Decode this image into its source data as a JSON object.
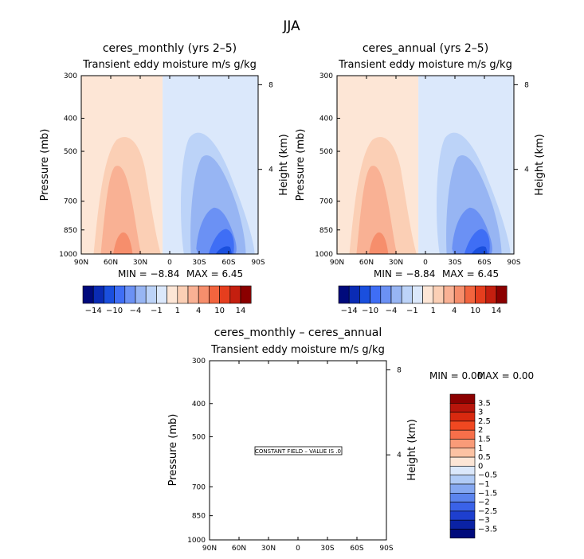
{
  "page": {
    "season": "JJA"
  },
  "panels": [
    {
      "title": "ceres_monthly (yrs 2–5)",
      "subtitle": "Transient eddy moisture m/s g/kg",
      "ylabel": "Pressure (mb)",
      "y2label": "Height (km)",
      "min_text": "MIN =   −8.84",
      "max_text": "MAX =    6.45"
    },
    {
      "title": "ceres_annual (yrs 2–5)",
      "subtitle": "Transient eddy moisture m/s g/kg",
      "ylabel": "Pressure (mb)",
      "y2label": "Height (km)",
      "min_text": "MIN =   −8.84",
      "max_text": "MAX =    6.45"
    },
    {
      "title": "ceres_monthly – ceres_annual",
      "subtitle": "Transient eddy moisture m/s g/kg",
      "ylabel": "Pressure (mb)",
      "y2label": "Height (km)",
      "min_text": "MIN =    0.00",
      "max_text": "MAX =    0.00",
      "note": "CONSTANT FIELD – VALUE IS .0"
    }
  ],
  "chart_data": [
    {
      "type": "heatmap",
      "title": "ceres_monthly (yrs 2–5)",
      "subtitle": "Transient eddy moisture m/s g/kg",
      "xlabel": "",
      "ylabel": "Pressure (mb)",
      "y2label": "Height (km)",
      "x_ticks": [
        "90N",
        "60N",
        "30N",
        "0",
        "30S",
        "60S",
        "90S"
      ],
      "y_ticks": [
        300,
        400,
        500,
        700,
        850,
        1000
      ],
      "y_scale": "log-pressure",
      "y2_ticks": [
        8,
        4
      ],
      "min": -8.84,
      "max": 6.45,
      "colorbar": {
        "orientation": "horizontal",
        "levels": [
          -14,
          -10,
          -4,
          -1,
          1,
          4,
          10,
          14
        ],
        "colors": [
          "#000a7c",
          "#0a2bb4",
          "#1a4fde",
          "#3f6ef5",
          "#6b91f4",
          "#97b5f3",
          "#bcd3f8",
          "#dbe8fb",
          "#fde6d6",
          "#fbcfb5",
          "#f9b194",
          "#f68e6c",
          "#f2643e",
          "#e53e1e",
          "#c41f0f",
          "#8b0000"
        ]
      }
    },
    {
      "type": "heatmap",
      "title": "ceres_annual (yrs 2–5)",
      "subtitle": "Transient eddy moisture m/s g/kg",
      "xlabel": "",
      "ylabel": "Pressure (mb)",
      "y2label": "Height (km)",
      "x_ticks": [
        "90N",
        "60N",
        "30N",
        "0",
        "30S",
        "60S",
        "90S"
      ],
      "y_ticks": [
        300,
        400,
        500,
        700,
        850,
        1000
      ],
      "y_scale": "log-pressure",
      "y2_ticks": [
        8,
        4
      ],
      "min": -8.84,
      "max": 6.45,
      "colorbar": {
        "orientation": "horizontal",
        "levels": [
          -14,
          -10,
          -4,
          -1,
          1,
          4,
          10,
          14
        ],
        "colors": [
          "#000a7c",
          "#0a2bb4",
          "#1a4fde",
          "#3f6ef5",
          "#6b91f4",
          "#97b5f3",
          "#bcd3f8",
          "#dbe8fb",
          "#fde6d6",
          "#fbcfb5",
          "#f9b194",
          "#f68e6c",
          "#f2643e",
          "#e53e1e",
          "#c41f0f",
          "#8b0000"
        ]
      }
    },
    {
      "type": "heatmap",
      "title": "ceres_monthly – ceres_annual",
      "subtitle": "Transient eddy moisture m/s g/kg",
      "xlabel": "",
      "ylabel": "Pressure (mb)",
      "y2label": "Height (km)",
      "x_ticks": [
        "90N",
        "60N",
        "30N",
        "0",
        "30S",
        "60S",
        "90S"
      ],
      "y_ticks": [
        300,
        400,
        500,
        700,
        850,
        1000
      ],
      "y_scale": "log-pressure",
      "y2_ticks": [
        8,
        4
      ],
      "min": 0.0,
      "max": 0.0,
      "constant_value": 0.0,
      "colorbar": {
        "orientation": "vertical",
        "levels": [
          3.5,
          3,
          2.5,
          2,
          1.5,
          1,
          0.5,
          0,
          -0.5,
          -1,
          -1.5,
          -2,
          -2.5,
          -3,
          -3.5
        ],
        "colors": [
          "#8b0000",
          "#b8150b",
          "#d8290f",
          "#f04821",
          "#f76f4a",
          "#f99b78",
          "#fcc2a3",
          "#fde6d6",
          "#dbe8fb",
          "#b0cbf6",
          "#85a8f1",
          "#5b84ee",
          "#3a62e8",
          "#1e3fcf",
          "#0a22a4",
          "#000a7c"
        ]
      }
    }
  ]
}
